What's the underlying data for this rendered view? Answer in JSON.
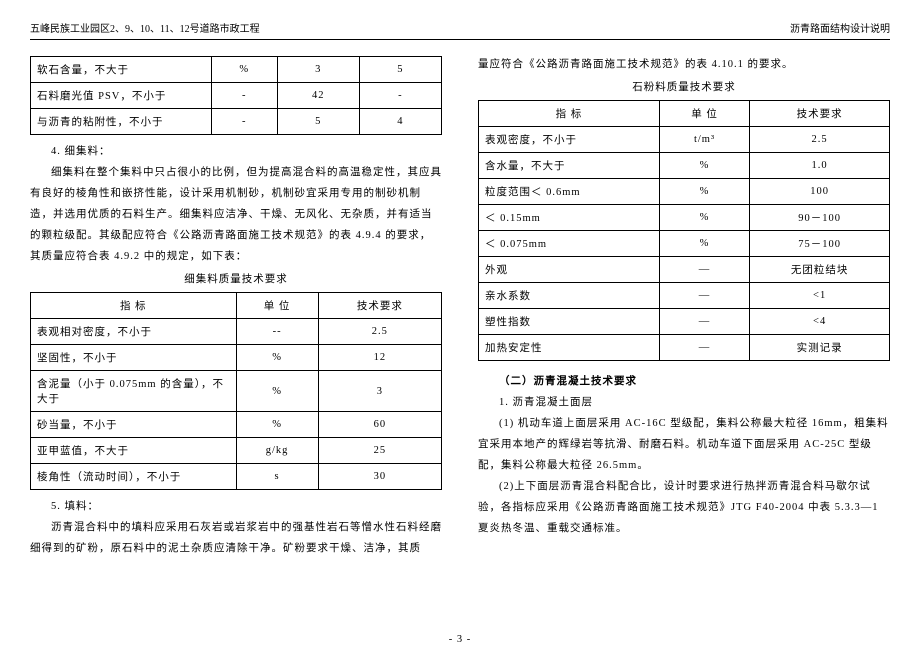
{
  "header": {
    "left": "五峰民族工业园区2、9、10、11、12号道路市政工程",
    "right": "沥青路面结构设计说明"
  },
  "left": {
    "table1_rows": [
      {
        "a": "软石含量，不大于",
        "b": "%",
        "c": "3",
        "d": "5"
      },
      {
        "a": "石料磨光值 PSV，不小于",
        "b": "-",
        "c": "42",
        "d": "-"
      },
      {
        "a": "与沥青的粘附性，不小于",
        "b": "-",
        "c": "5",
        "d": "4"
      }
    ],
    "p_4_title": "4. 细集料：",
    "p_4a": "细集料在整个集料中只占很小的比例，但为提高混合料的高温稳定性，其应具有良好的棱角性和嵌挤性能，设计采用机制砂，机制砂宜采用专用的制砂机制造，并选用优质的石料生产。细集料应洁净、干燥、无风化、无杂质，并有适当的颗粒级配。其级配应符合《公路沥青路面施工技术规范》的表 4.9.4 的要求，其质量应符合表 4.9.2 中的规定，如下表：",
    "cap2": "细集料质量技术要求",
    "table2_head": [
      "指 标",
      "单  位",
      "技术要求"
    ],
    "table2_rows": [
      {
        "a": "表观相对密度，不小于",
        "b": "--",
        "c": "2.5"
      },
      {
        "a": "坚固性，不小于",
        "b": "%",
        "c": "12"
      },
      {
        "a": "含泥量（小于 0.075mm 的含量），不大于",
        "b": "%",
        "c": "3"
      },
      {
        "a": "砂当量，不小于",
        "b": "%",
        "c": "60"
      },
      {
        "a": "亚甲蓝值，不大于",
        "b": "g/kg",
        "c": "25"
      },
      {
        "a": "棱角性（流动时间），不小于",
        "b": "s",
        "c": "30"
      }
    ],
    "p_5_title": "5.  填料：",
    "p_5a": "沥青混合料中的填料应采用石灰岩或岩浆岩中的强基性岩石等憎水性石料经磨细得到的矿粉，原石料中的泥土杂质应清除干净。矿粉要求干燥、洁净，其质"
  },
  "right": {
    "p_cont": "量应符合《公路沥青路面施工技术规范》的表 4.10.1 的要求。",
    "cap3": "石粉料质量技术要求",
    "table3_head": [
      "指 标",
      "单  位",
      "技术要求"
    ],
    "table3_rows": [
      {
        "a": "表观密度，不小于",
        "b": "t/m³",
        "c": "2.5"
      },
      {
        "a": "含水量，不大于",
        "b": "%",
        "c": "1.0"
      },
      {
        "a": "粒度范围＜ 0.6mm",
        "b": "%",
        "c": "100"
      },
      {
        "a": "＜ 0.15mm",
        "b": "%",
        "c": "90－100"
      },
      {
        "a": "＜ 0.075mm",
        "b": "%",
        "c": "75－100"
      },
      {
        "a": "外观",
        "b": "—",
        "c": "无团粒结块"
      },
      {
        "a": "亲水系数",
        "b": "—",
        "c": "<1"
      },
      {
        "a": "塑性指数",
        "b": "—",
        "c": "<4"
      },
      {
        "a": "加热安定性",
        "b": "—",
        "c": "实测记录"
      }
    ],
    "h2": "（二）沥青混凝土技术要求",
    "p_2_1": "1. 沥青混凝土面层",
    "p_2_1a": "(1) 机动车道上面层采用 AC-16C 型级配，集料公称最大粒径 16mm，粗集料宜采用本地产的辉绿岩等抗滑、耐磨石料。机动车道下面层采用 AC-25C 型级配，集料公称最大粒径 26.5mm。",
    "p_2_1b": "(2)上下面层沥青混合料配合比，设计时要求进行热拌沥青混合料马歇尔试验，各指标应采用《公路沥青路面施工技术规范》JTG F40-2004 中表 5.3.3—1 夏炎热冬温、重载交通标准。"
  },
  "footer": "- 3 -"
}
